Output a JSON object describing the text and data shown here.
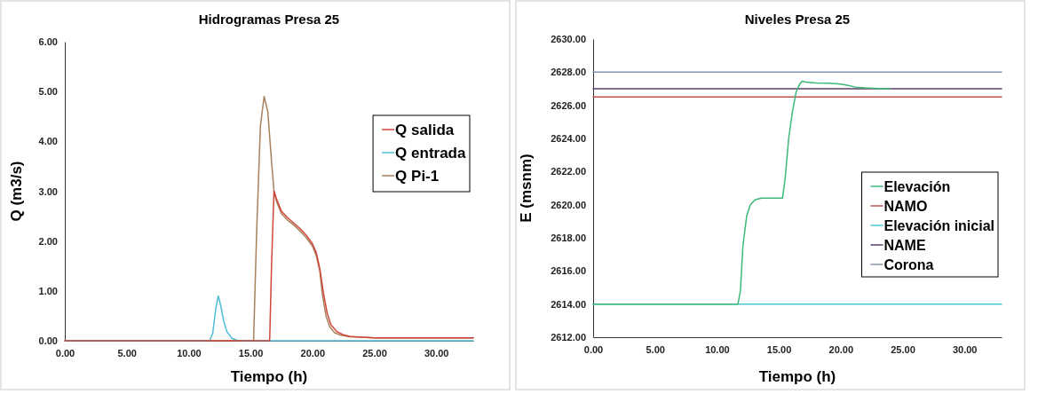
{
  "chart_data": [
    {
      "type": "line",
      "title": "Hidrogramas Presa 25",
      "xlabel": "Tiempo (h)",
      "ylabel": "Q (m3/s)",
      "xlim": [
        0,
        33
      ],
      "ylim": [
        0,
        6
      ],
      "xticks": [
        {
          "value": 0,
          "label": "0.00"
        },
        {
          "value": 5,
          "label": "5.00"
        },
        {
          "value": 10,
          "label": "10.00"
        },
        {
          "value": 15,
          "label": "15.00"
        },
        {
          "value": 20,
          "label": "20.00"
        },
        {
          "value": 25,
          "label": "25.00"
        },
        {
          "value": 30,
          "label": "30.00"
        }
      ],
      "yticks": [
        {
          "value": 0,
          "label": "0.00"
        },
        {
          "value": 1,
          "label": "1.00"
        },
        {
          "value": 2,
          "label": "2.00"
        },
        {
          "value": 3,
          "label": "3.00"
        },
        {
          "value": 4,
          "label": "4.00"
        },
        {
          "value": 5,
          "label": "5.00"
        },
        {
          "value": 6,
          "label": "6.00"
        }
      ],
      "grid": false,
      "legend": "right",
      "marker": "none",
      "line_style": "solid",
      "series": [
        {
          "name": "Q salida",
          "color": "#d0463a",
          "x": [
            0,
            16.55,
            16.7,
            16.9,
            17.1,
            17.5,
            18,
            18.5,
            19,
            19.5,
            20,
            20.3,
            20.6,
            20.9,
            21.2,
            21.5,
            22,
            22.5,
            23,
            24,
            25,
            28,
            33
          ],
          "values": [
            0,
            0,
            1.5,
            3.0,
            2.85,
            2.6,
            2.47,
            2.36,
            2.25,
            2.12,
            1.95,
            1.78,
            1.45,
            0.95,
            0.55,
            0.32,
            0.18,
            0.12,
            0.09,
            0.07,
            0.06,
            0.06,
            0.06
          ]
        },
        {
          "name": "Q entrada",
          "color": "#4bbfd6",
          "x": [
            0,
            11.7,
            11.95,
            12.2,
            12.4,
            12.6,
            12.85,
            13.1,
            13.5,
            14,
            33
          ],
          "values": [
            0,
            0,
            0.15,
            0.65,
            0.9,
            0.7,
            0.38,
            0.18,
            0.05,
            0,
            0
          ]
        },
        {
          "name": "Q Pi-1",
          "color": "#a8805c",
          "x": [
            0,
            15.25,
            15.5,
            15.8,
            16.1,
            16.4,
            16.7,
            16.9,
            17.1,
            17.5,
            18,
            18.5,
            19,
            19.5,
            20,
            20.3,
            20.6,
            20.8,
            21.1,
            21.4,
            21.8,
            22.3,
            23,
            24,
            25,
            28,
            33
          ],
          "values": [
            0,
            0,
            2.2,
            4.3,
            4.9,
            4.6,
            3.6,
            3.0,
            2.8,
            2.55,
            2.42,
            2.32,
            2.2,
            2.07,
            1.9,
            1.72,
            1.4,
            0.95,
            0.5,
            0.28,
            0.16,
            0.11,
            0.08,
            0.07,
            0.06,
            0.06,
            0.06
          ]
        }
      ]
    },
    {
      "type": "line",
      "title": "Niveles Presa 25",
      "xlabel": "Tiempo (h)",
      "ylabel": "E (msnm)",
      "xlim": [
        0,
        33
      ],
      "ylim": [
        2612,
        2630
      ],
      "xticks": [
        {
          "value": 0,
          "label": "0.00"
        },
        {
          "value": 5,
          "label": "5.00"
        },
        {
          "value": 10,
          "label": "10.00"
        },
        {
          "value": 15,
          "label": "15.00"
        },
        {
          "value": 20,
          "label": "20.00"
        },
        {
          "value": 25,
          "label": "25.00"
        },
        {
          "value": 30,
          "label": "30.00"
        }
      ],
      "yticks": [
        {
          "value": 2612,
          "label": "2612.00"
        },
        {
          "value": 2614,
          "label": "2614.00"
        },
        {
          "value": 2616,
          "label": "2616.00"
        },
        {
          "value": 2618,
          "label": "2618.00"
        },
        {
          "value": 2620,
          "label": "2620.00"
        },
        {
          "value": 2622,
          "label": "2622.00"
        },
        {
          "value": 2624,
          "label": "2624.00"
        },
        {
          "value": 2626,
          "label": "2626.00"
        },
        {
          "value": 2628,
          "label": "2628.00"
        },
        {
          "value": 2630,
          "label": "2630.00"
        }
      ],
      "grid": false,
      "legend": "right",
      "marker": "none",
      "line_style": "solid",
      "series": [
        {
          "name": "Elevación",
          "color": "#3cb878",
          "x": [
            0,
            11.7,
            11.9,
            12.1,
            12.4,
            12.7,
            13.1,
            13.6,
            14.5,
            15.3,
            15.5,
            15.8,
            16.1,
            16.4,
            16.7,
            16.9,
            17.2,
            18,
            19,
            20,
            20.6,
            21.2,
            22,
            23,
            24
          ],
          "values": [
            2614,
            2614,
            2614.8,
            2617.5,
            2619.3,
            2620,
            2620.3,
            2620.4,
            2620.4,
            2620.4,
            2621.5,
            2624,
            2625.6,
            2626.8,
            2627.3,
            2627.45,
            2627.4,
            2627.35,
            2627.33,
            2627.28,
            2627.2,
            2627.1,
            2627.05,
            2627.02,
            2627
          ]
        },
        {
          "name": "NAMO",
          "color": "#c0504d",
          "x": [
            0,
            33
          ],
          "values": [
            2626.5,
            2626.5
          ]
        },
        {
          "name": "Elevación inicial",
          "color": "#4bc6d9",
          "x": [
            0,
            33
          ],
          "values": [
            2614,
            2614
          ]
        },
        {
          "name": "NAME",
          "color": "#5b3f6b",
          "x": [
            0,
            33
          ],
          "values": [
            2627,
            2627
          ]
        },
        {
          "name": "Corona",
          "color": "#8497b0",
          "x": [
            0,
            33
          ],
          "values": [
            2628,
            2628
          ]
        }
      ]
    }
  ]
}
